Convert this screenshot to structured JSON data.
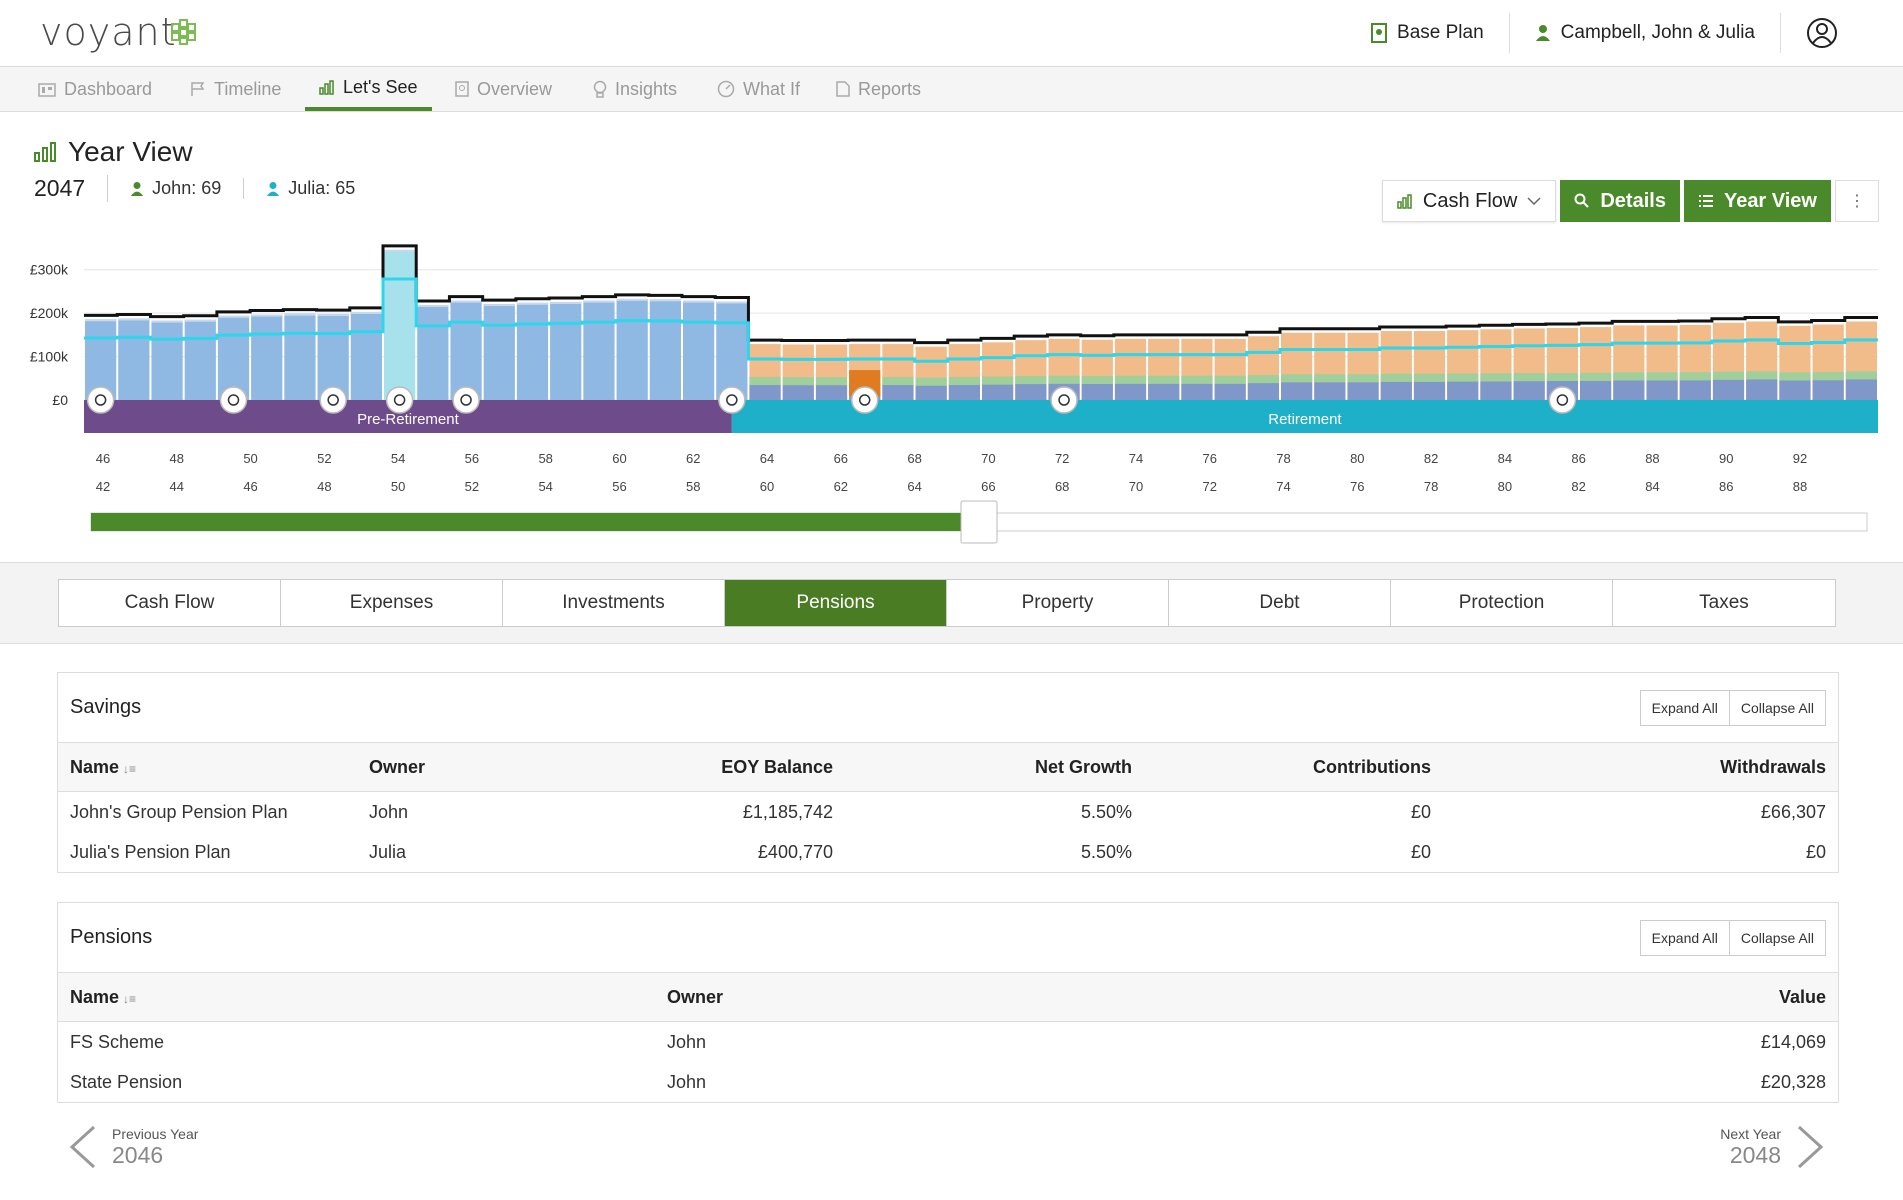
{
  "app": {
    "logo": "voyant"
  },
  "header": {
    "plan": "Base Plan",
    "client": "Campbell, John & Julia"
  },
  "nav": [
    {
      "label": "Dashboard",
      "icon": "dashboard-icon"
    },
    {
      "label": "Timeline",
      "icon": "flag-icon"
    },
    {
      "label": "Let's See",
      "icon": "bar-chart-icon"
    },
    {
      "label": "Overview",
      "icon": "document-icon"
    },
    {
      "label": "Insights",
      "icon": "lightbulb-icon"
    },
    {
      "label": "What If",
      "icon": "gauge-icon"
    },
    {
      "label": "Reports",
      "icon": "report-icon"
    }
  ],
  "page": {
    "title": "Year View",
    "year": "2047",
    "john": "John: 69",
    "julia": "Julia: 65"
  },
  "toolbar": {
    "dropdown": "Cash Flow",
    "details": "Details",
    "year_view": "Year View",
    "more": "⋮"
  },
  "colors": {
    "green": "#4a8a2a",
    "tab_green": "#4a7d23",
    "pre_retirement": "#6e4b8b",
    "retirement": "#1fb0c9",
    "bar_blue": "#8fb8e3",
    "bar_orange": "#f1bb8a",
    "slate": "#8098c9",
    "cyan": "#2dd6ea"
  },
  "chart_data": {
    "type": "bar",
    "ylabels": [
      "£300k",
      "£200k",
      "£100k",
      "£0"
    ],
    "ylim": [
      0,
      350
    ],
    "phases": [
      "Pre-Retirement",
      "Retirement"
    ],
    "ages_john": [
      "46",
      "48",
      "50",
      "52",
      "54",
      "56",
      "58",
      "60",
      "62",
      "64",
      "66",
      "68",
      "70",
      "72",
      "74",
      "76",
      "78",
      "80",
      "82",
      "84",
      "86",
      "88",
      "90",
      "92"
    ],
    "ages_julia": [
      "42",
      "44",
      "46",
      "48",
      "50",
      "52",
      "54",
      "56",
      "58",
      "60",
      "62",
      "64",
      "66",
      "68",
      "70",
      "72",
      "74",
      "76",
      "78",
      "80",
      "82",
      "84",
      "86",
      "88"
    ],
    "selected_age_john": 69,
    "series": [
      {
        "values": [
          195,
          197,
          192,
          194,
          203,
          206,
          208,
          207,
          212,
          355,
          228,
          238,
          230,
          233,
          235,
          238,
          242,
          241,
          238,
          236,
          138,
          137,
          137,
          138,
          138,
          132,
          138,
          142,
          147,
          150,
          148,
          150,
          150,
          150,
          150,
          156,
          164,
          164,
          164,
          168,
          168,
          170,
          172,
          174,
          175,
          177,
          181,
          181,
          182,
          187,
          190,
          180,
          183,
          190
        ]
      }
    ],
    "timeline": [
      {
        "label": "Pre-Retirement",
        "start": 46,
        "end": 65
      },
      {
        "label": "Retirement",
        "start": 65,
        "end": 94
      }
    ]
  },
  "tabs": [
    "Cash Flow",
    "Expenses",
    "Investments",
    "Pensions",
    "Property",
    "Debt",
    "Protection",
    "Taxes"
  ],
  "savings": {
    "title": "Savings",
    "expand": "Expand All",
    "collapse": "Collapse All",
    "headers": [
      "Name",
      "Owner",
      "EOY Balance",
      "Net Growth",
      "Contributions",
      "Withdrawals"
    ],
    "rows": [
      [
        "John's Group Pension Plan",
        "John",
        "£1,185,742",
        "5.50%",
        "£0",
        "£66,307"
      ],
      [
        "Julia's Pension Plan",
        "Julia",
        "£400,770",
        "5.50%",
        "£0",
        "£0"
      ]
    ]
  },
  "pensions": {
    "title": "Pensions",
    "expand": "Expand All",
    "collapse": "Collapse All",
    "headers": [
      "Name",
      "Owner",
      "Value"
    ],
    "rows": [
      [
        "FS Scheme",
        "John",
        "£14,069"
      ],
      [
        "State Pension",
        "John",
        "£20,328"
      ]
    ]
  },
  "pager": {
    "prev_label": "Previous Year",
    "prev_year": "2046",
    "next_label": "Next Year",
    "next_year": "2048"
  }
}
